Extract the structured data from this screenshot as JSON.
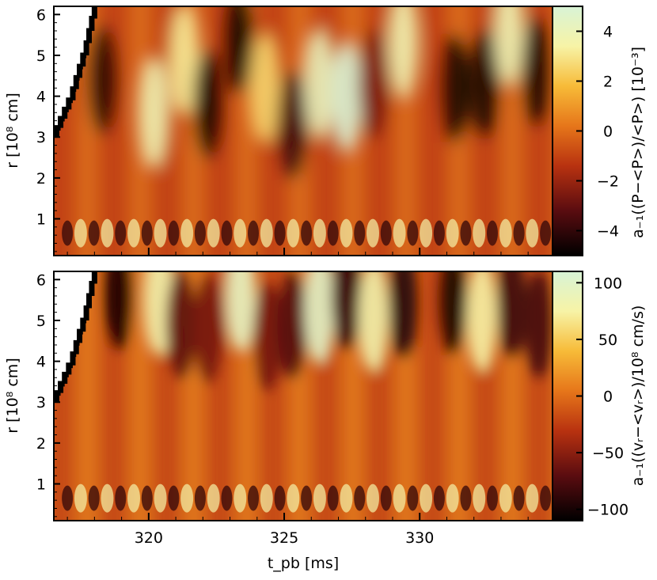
{
  "chart_data": [
    {
      "type": "heatmap",
      "panel": "top",
      "xlabel": "",
      "ylabel": "r [10⁸ cm]",
      "xlim": [
        316.5,
        334.9
      ],
      "ylim": [
        0.1,
        6.2
      ],
      "yticks": [
        1,
        2,
        3,
        4,
        5,
        6
      ],
      "colorbar": {
        "label": "a₋₁((P−<P>)/<P>) [10⁻³]",
        "range": [
          -5,
          5
        ],
        "ticks": [
          -4,
          -2,
          0,
          2,
          4
        ],
        "tick_labels": [
          "−4",
          "−2",
          "0",
          "2",
          "4"
        ]
      },
      "stripe_period_ms": 0.98,
      "bands": [
        {
          "t": 318.3,
          "r": 4.4,
          "value": -4.2
        },
        {
          "t": 320.2,
          "r": 3.6,
          "value": 3.8
        },
        {
          "t": 321.3,
          "r": 4.9,
          "value": 3.2
        },
        {
          "t": 322.2,
          "r": 3.8,
          "value": -4.8
        },
        {
          "t": 323.3,
          "r": 5.4,
          "value": -4.9
        },
        {
          "t": 324.3,
          "r": 4.2,
          "value": 2.6
        },
        {
          "t": 325.3,
          "r": 3.3,
          "value": -3.9
        },
        {
          "t": 326.3,
          "r": 4.3,
          "value": 4.2
        },
        {
          "t": 327.3,
          "r": 4.0,
          "value": 5.0
        },
        {
          "t": 328.3,
          "r": 4.3,
          "value": -2.6
        },
        {
          "t": 329.4,
          "r": 5.3,
          "value": 3.8
        },
        {
          "t": 331.3,
          "r": 4.2,
          "value": -4.6
        },
        {
          "t": 332.4,
          "r": 4.3,
          "value": -4.4
        },
        {
          "t": 333.3,
          "r": 5.6,
          "value": 3.9
        },
        {
          "t": 334.3,
          "r": 4.6,
          "value": -4.4
        }
      ],
      "shock_boundary": [
        [
          316.6,
          3.0
        ],
        [
          317.2,
          3.9
        ],
        [
          317.7,
          5.0
        ],
        [
          318.1,
          6.2
        ]
      ]
    },
    {
      "type": "heatmap",
      "panel": "bottom",
      "xlabel": "t_pb [ms]",
      "ylabel": "r [10⁸ cm]",
      "xlim": [
        316.5,
        334.9
      ],
      "ylim": [
        0.1,
        6.2
      ],
      "xticks": [
        320,
        325,
        330
      ],
      "yticks": [
        1,
        2,
        3,
        4,
        5,
        6
      ],
      "colorbar": {
        "label": "a₋₁((vᵣ−<vᵣ>)/10⁸ cm/s)",
        "range": [
          -110,
          110
        ],
        "ticks": [
          -100,
          -50,
          0,
          50,
          100
        ],
        "tick_labels": [
          "−100",
          "−50",
          "0",
          "50",
          "100"
        ]
      },
      "stripe_period_ms": 0.98,
      "bands": [
        {
          "t": 318.9,
          "r": 5.6,
          "value": -100
        },
        {
          "t": 320.4,
          "r": 5.5,
          "value": 80
        },
        {
          "t": 321.2,
          "r": 4.9,
          "value": -70
        },
        {
          "t": 322.2,
          "r": 4.8,
          "value": -60
        },
        {
          "t": 323.4,
          "r": 5.6,
          "value": 95
        },
        {
          "t": 324.4,
          "r": 4.6,
          "value": -60
        },
        {
          "t": 325.3,
          "r": 4.9,
          "value": -75
        },
        {
          "t": 326.3,
          "r": 5.3,
          "value": 100
        },
        {
          "t": 327.3,
          "r": 5.6,
          "value": -90
        },
        {
          "t": 328.3,
          "r": 5.1,
          "value": 80
        },
        {
          "t": 329.4,
          "r": 5.4,
          "value": -95
        },
        {
          "t": 331.2,
          "r": 5.5,
          "value": -100
        },
        {
          "t": 332.3,
          "r": 5.1,
          "value": 75
        },
        {
          "t": 333.4,
          "r": 5.4,
          "value": -85
        },
        {
          "t": 334.4,
          "r": 4.9,
          "value": -80
        }
      ],
      "shock_boundary": [
        [
          316.6,
          3.0
        ],
        [
          317.2,
          3.9
        ],
        [
          317.7,
          5.0
        ],
        [
          318.1,
          6.2
        ]
      ]
    }
  ]
}
